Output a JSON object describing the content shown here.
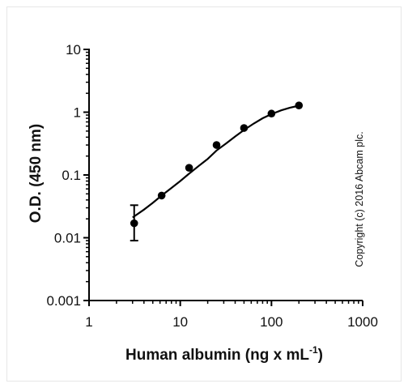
{
  "chart_data": {
    "type": "scatter",
    "x_scale": "log",
    "y_scale": "log",
    "xlim": [
      1,
      1000
    ],
    "ylim": [
      0.001,
      10
    ],
    "x_ticks": [
      {
        "value": 1,
        "label": "1"
      },
      {
        "value": 10,
        "label": "10"
      },
      {
        "value": 100,
        "label": "100"
      },
      {
        "value": 1000,
        "label": "1000"
      }
    ],
    "y_ticks": [
      {
        "value": 0.001,
        "label": "0.001"
      },
      {
        "value": 0.01,
        "label": "0.01"
      },
      {
        "value": 0.1,
        "label": "0.1"
      },
      {
        "value": 1,
        "label": "1"
      },
      {
        "value": 10,
        "label": "10"
      }
    ],
    "xlabel": "Human albumin (ng x mL",
    "xlabel_superscript": "-1",
    "xlabel_suffix": ")",
    "ylabel": "O.D. (450 nm)",
    "copyright": "Copyright (c) 2016 Abcam plc.",
    "grid": false,
    "points": [
      {
        "x": 3.125,
        "y": 0.017,
        "y_err_low": 0.009,
        "y_err_high": 0.033
      },
      {
        "x": 6.25,
        "y": 0.047
      },
      {
        "x": 12.5,
        "y": 0.13
      },
      {
        "x": 25,
        "y": 0.3
      },
      {
        "x": 50,
        "y": 0.56
      },
      {
        "x": 100,
        "y": 0.95
      },
      {
        "x": 200,
        "y": 1.28
      }
    ],
    "fit_curve": {
      "x": [
        3.0,
        4,
        5,
        6.25,
        8,
        10,
        12.5,
        16,
        20,
        25,
        32,
        40,
        50,
        64,
        80,
        100,
        128,
        160,
        200
      ],
      "y": [
        0.021,
        0.028,
        0.036,
        0.047,
        0.062,
        0.08,
        0.105,
        0.14,
        0.18,
        0.245,
        0.32,
        0.41,
        0.52,
        0.66,
        0.8,
        0.93,
        1.07,
        1.18,
        1.27
      ]
    },
    "marker_color": "#000000",
    "line_color": "#000000"
  }
}
